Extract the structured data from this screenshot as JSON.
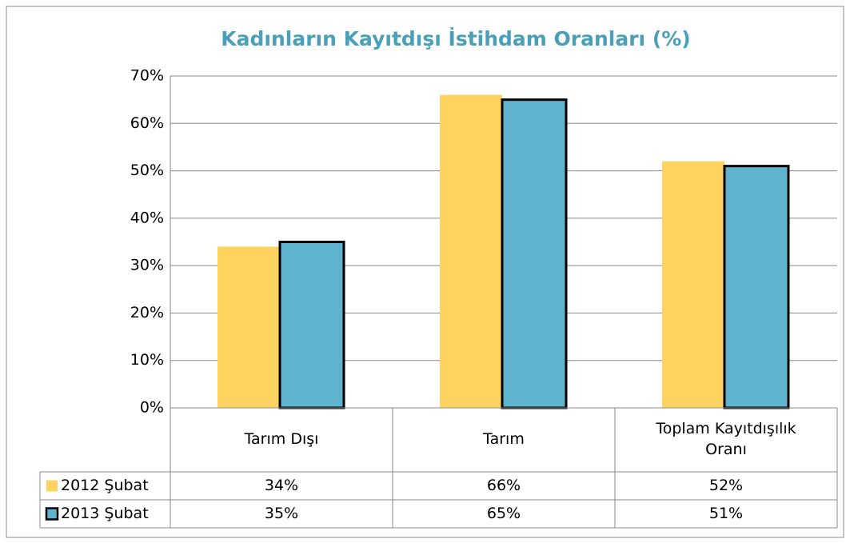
{
  "chart_data": {
    "type": "bar",
    "title": "Kadınların Kayıtdışı İstihdam Oranları (%)",
    "categories": [
      "Tarım Dışı",
      "Tarım",
      "Toplam Kayıtdışılık Oranı"
    ],
    "series": [
      {
        "name": "2012 Şubat",
        "color": "#ffd35f",
        "values": [
          34,
          66,
          52
        ],
        "value_labels": [
          "34%",
          "66%",
          "52%"
        ]
      },
      {
        "name": "2013 Şubat",
        "color": "#5fb3cc",
        "values": [
          35,
          65,
          51
        ],
        "value_labels": [
          "35%",
          "65%",
          "51%"
        ]
      }
    ],
    "ylim": [
      0,
      70
    ],
    "yticks": [
      {
        "value": 0,
        "label": "0%"
      },
      {
        "value": 10,
        "label": "10%"
      },
      {
        "value": 20,
        "label": "20%"
      },
      {
        "value": 30,
        "label": "30%"
      },
      {
        "value": 40,
        "label": "40%"
      },
      {
        "value": 50,
        "label": "50%"
      },
      {
        "value": 60,
        "label": "60%"
      },
      {
        "value": 70,
        "label": "70%"
      }
    ],
    "grid": true
  }
}
